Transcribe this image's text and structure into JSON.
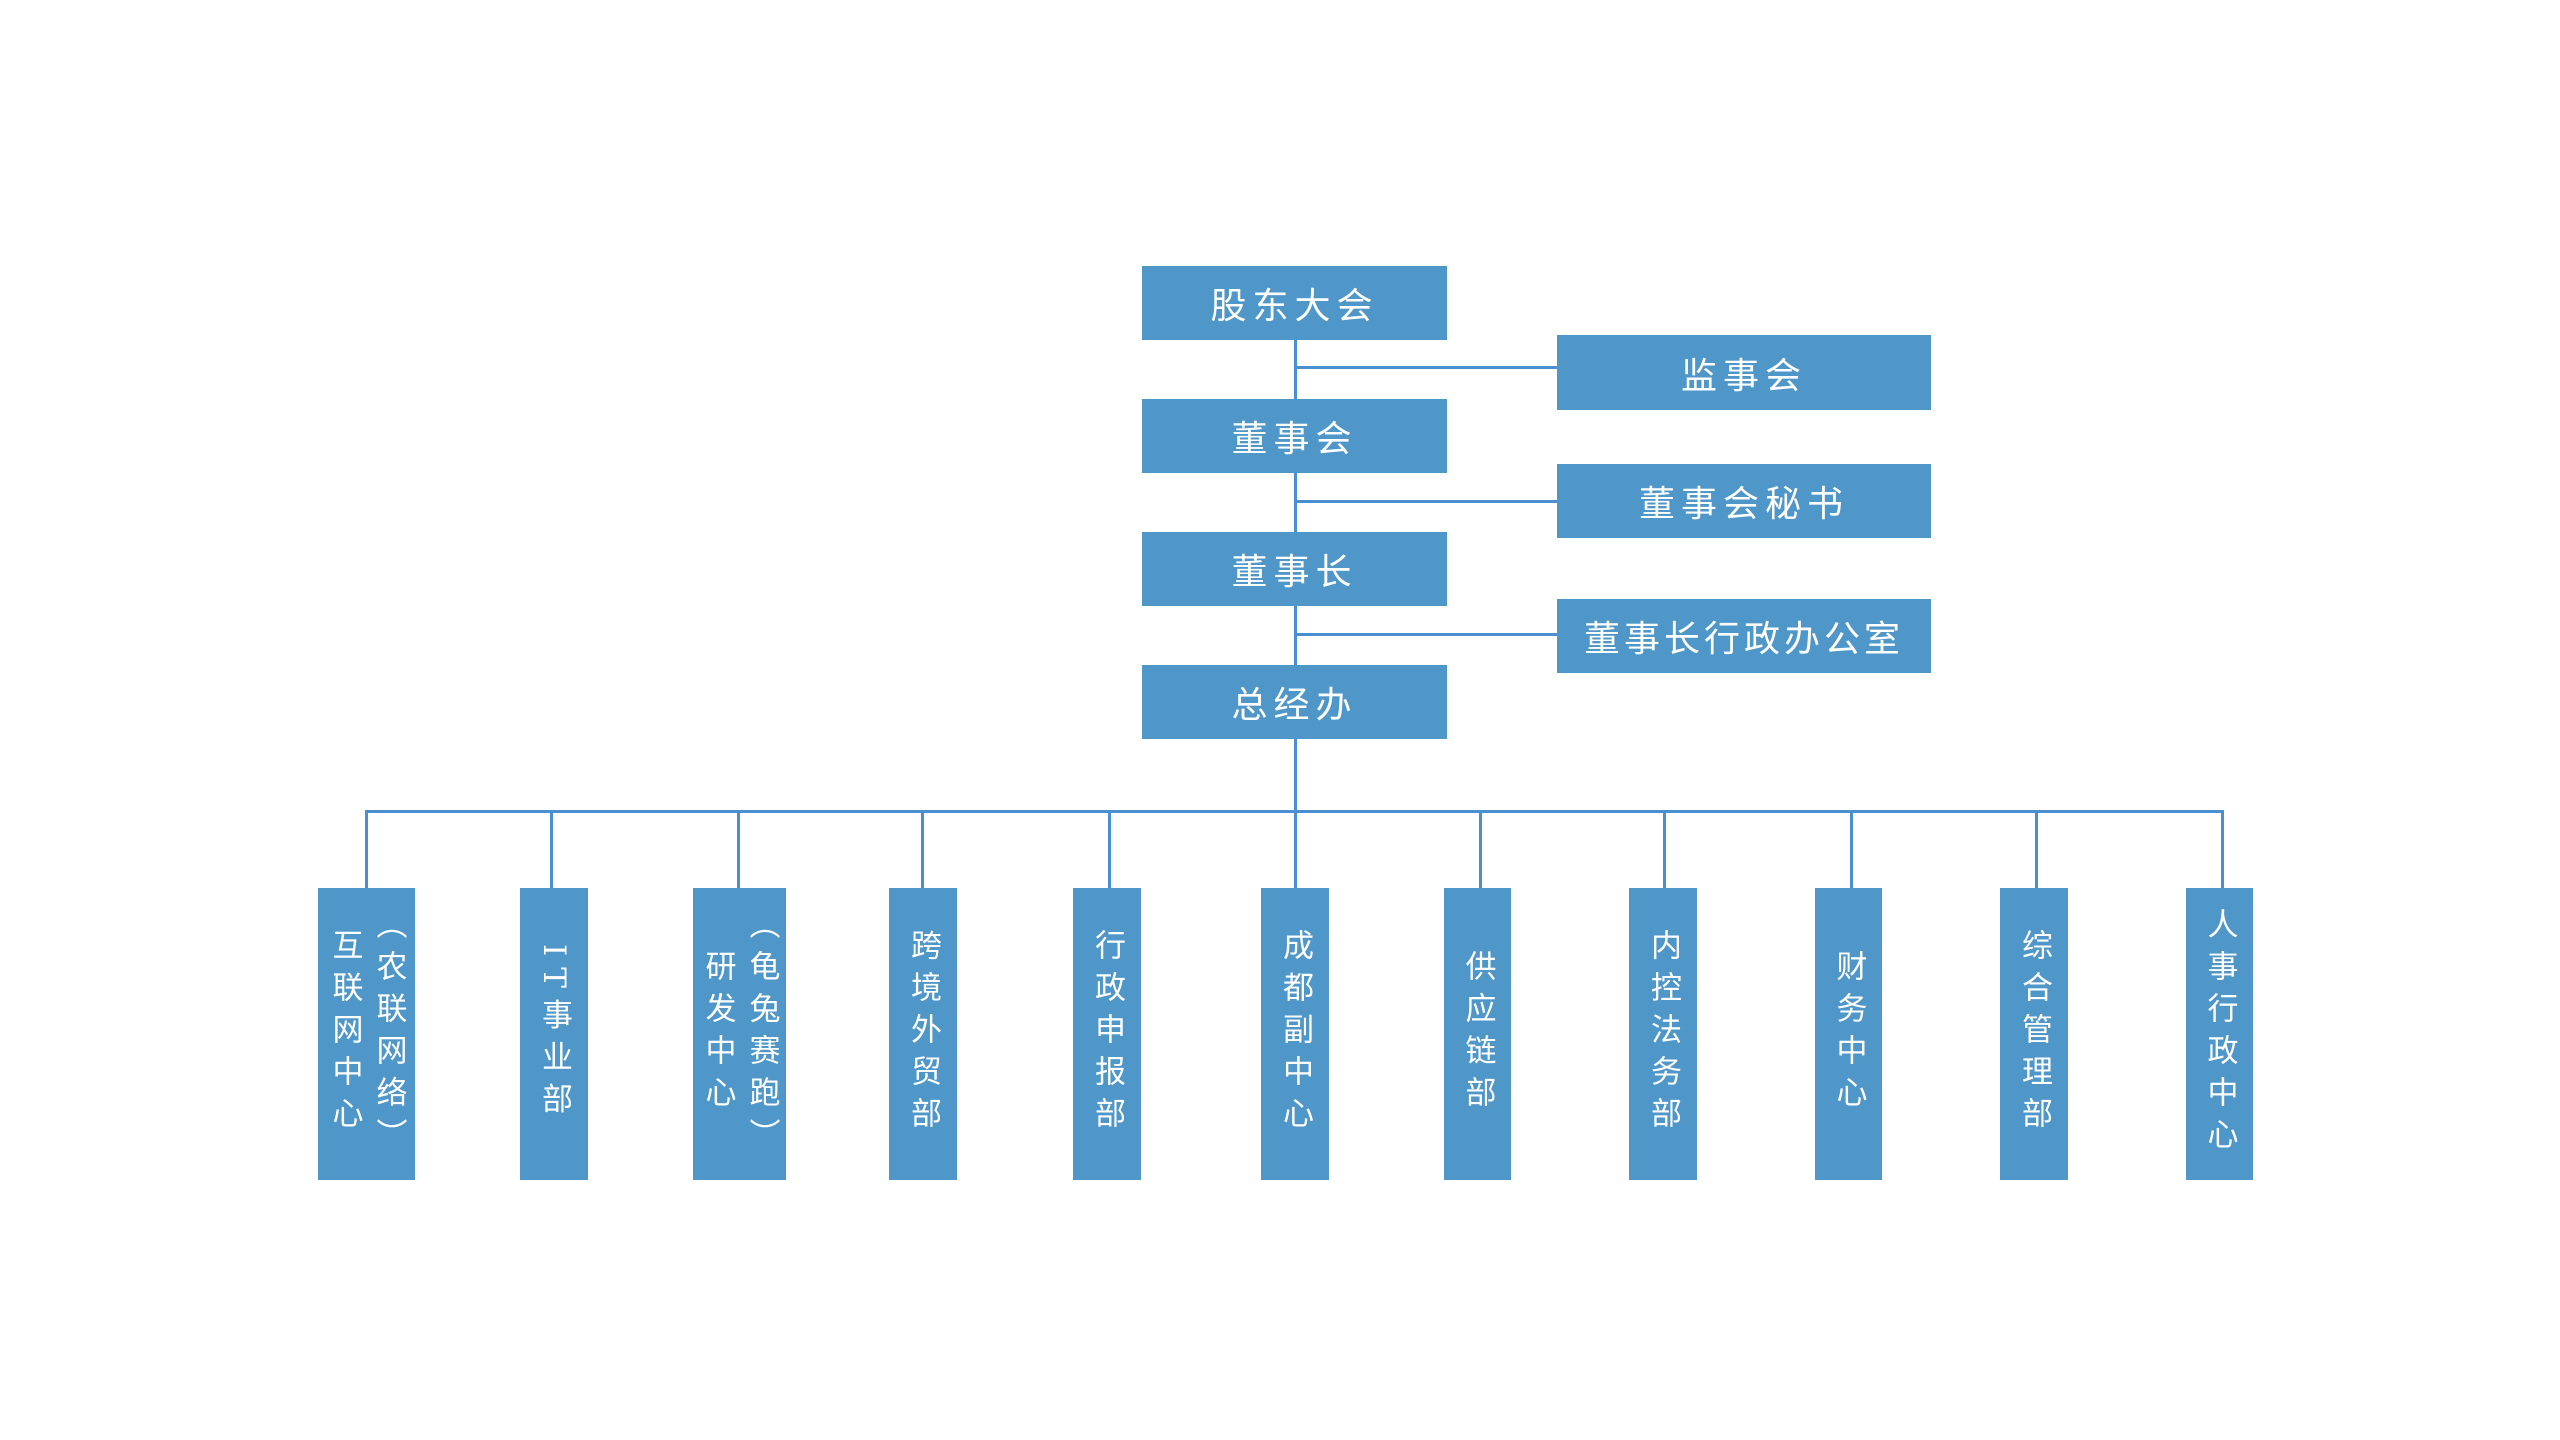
{
  "colors": {
    "box": "#4f96c9",
    "line": "#4a8fcf",
    "text": "#ffffff"
  },
  "top_chain": [
    {
      "label": "股东大会"
    },
    {
      "label": "董事会"
    },
    {
      "label": "董事长"
    },
    {
      "label": "总经办"
    }
  ],
  "side_nodes": [
    {
      "label": "监事会"
    },
    {
      "label": "董事会秘书"
    },
    {
      "label": "董事长行政办公室"
    }
  ],
  "departments": [
    {
      "lines": [
        "互联网中心",
        "（农联网络）"
      ]
    },
    {
      "lines": [
        "IT事业部"
      ]
    },
    {
      "lines": [
        "研发中心",
        "（龟兔赛跑）"
      ]
    },
    {
      "lines": [
        "跨境外贸部"
      ]
    },
    {
      "lines": [
        "行政申报部"
      ]
    },
    {
      "lines": [
        "成都副中心"
      ]
    },
    {
      "lines": [
        "供应链部"
      ]
    },
    {
      "lines": [
        "内控法务部"
      ]
    },
    {
      "lines": [
        "财务中心"
      ]
    },
    {
      "lines": [
        "综合管理部"
      ]
    },
    {
      "lines": [
        "人事行政中心"
      ]
    }
  ]
}
